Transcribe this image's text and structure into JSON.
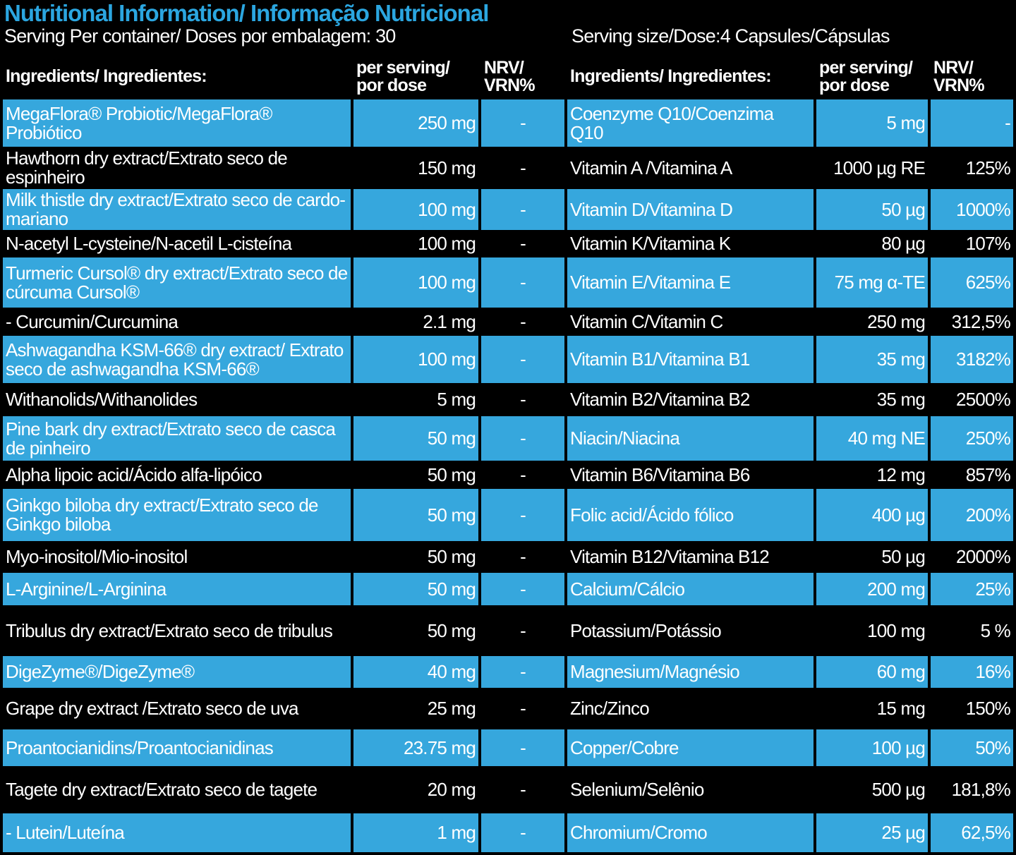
{
  "title": "Nutritional Information/ Informação Nutricional",
  "servings_per_container": "Serving Per container/ Doses por embalagem: 30",
  "serving_size": "Serving size/Dose:4 Capsules/Cápsulas",
  "table": {
    "header": [
      "Ingredients/ Ingredientes:",
      "per serving/ por dose",
      "NRV/ VRN%",
      "Ingredients/ Ingredientes:",
      "per serving/ por dose",
      "NRV/ VRN%"
    ],
    "rows": [
      [
        "MegaFlora® Probiotic/MegaFlora® Probiótico",
        "250 mg",
        "-",
        "Coenzyme Q10/Coenzima Q10",
        "5 mg",
        "-"
      ],
      [
        "Hawthorn dry extract/Extrato seco de espinheiro",
        "150 mg",
        "-",
        "Vitamin A /Vitamina A",
        "1000 µg RE",
        "125%"
      ],
      [
        "Milk thistle dry extract/Extrato seco de cardo-mariano",
        "100 mg",
        "-",
        "Vitamin D/Vitamina D",
        "50 µg",
        "1000%"
      ],
      [
        "N-acetyl L-cysteine/N-acetil L-cisteína",
        "100 mg",
        "-",
        "Vitamin K/Vitamina K",
        "80 µg",
        "107%"
      ],
      [
        "Turmeric Cursol® dry extract/Extrato seco de cúrcuma Cursol®",
        "100 mg",
        "-",
        "Vitamin E/Vitamina E",
        "75 mg α-TE",
        "625%"
      ],
      [
        "- Curcumin/Curcumina",
        "2.1 mg",
        "-",
        "Vitamin C/Vitamin C",
        "250 mg",
        "312,5%"
      ],
      [
        "Ashwagandha KSM-66® dry extract/ Extrato seco de ashwagandha KSM-66®",
        "100 mg",
        "-",
        "Vitamin B1/Vitamina B1",
        "35 mg",
        "3182%"
      ],
      [
        "Withanolids/Withanolides",
        "5 mg",
        "-",
        "Vitamin B2/Vitamina B2",
        "35 mg",
        "2500%"
      ],
      [
        "Pine bark dry extract/Extrato seco de casca de pinheiro",
        "50 mg",
        "-",
        "Niacin/Niacina",
        "40 mg NE",
        "250%"
      ],
      [
        "Alpha lipoic acid/Ácido alfa-lipóico",
        "50 mg",
        "-",
        "Vitamin B6/Vitamina B6",
        "12 mg",
        "857%"
      ],
      [
        "Ginkgo biloba dry extract/Extrato seco de Ginkgo biloba",
        "50 mg",
        "-",
        "Folic acid/Ácido fólico",
        "400 µg",
        "200%"
      ],
      [
        "Myo-inositol/Mio-inositol",
        "50 mg",
        "-",
        "Vitamin B12/Vitamina B12",
        "50 µg",
        "2000%"
      ],
      [
        "L-Arginine/L-Arginina",
        "50 mg",
        "-",
        "Calcium/Cálcio",
        "200 mg",
        "25%"
      ],
      [
        "Tribulus dry extract/Extrato seco de tribulus",
        "50 mg",
        "-",
        "Potassium/Potássio",
        "100 mg",
        "5 %"
      ],
      [
        "DigeZyme®/DigeZyme®",
        "40 mg",
        "-",
        "Magnesium/Magnésio",
        "60 mg",
        "16%"
      ],
      [
        "Grape dry extract /Extrato seco de uva",
        "25 mg",
        "-",
        "Zinc/Zinco",
        "15 mg",
        "150%"
      ],
      [
        "Proantocianidins/Proantocianidinas",
        "23.75 mg",
        "-",
        "Copper/Cobre",
        "100 µg",
        "50%"
      ],
      [
        "Tagete dry extract/Extrato seco de tagete",
        "20 mg",
        "-",
        "Selenium/Selênio",
        "500 µg",
        "181,8%"
      ],
      [
        "- Lutein/Luteína",
        "1 mg",
        "-",
        "Chromium/Cromo",
        "25 µg",
        "62,5%"
      ]
    ]
  }
}
